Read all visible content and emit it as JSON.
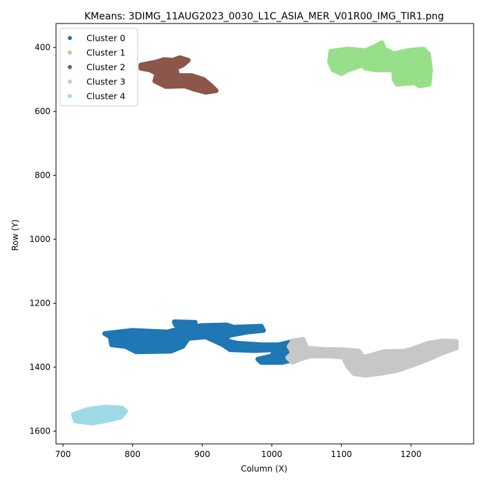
{
  "chart_data": {
    "type": "scatter",
    "title": "KMeans: 3DIMG_11AUG2023_0030_L1C_ASIA_MER_V01R00_IMG_TIR1.png",
    "xlabel": "Column (X)",
    "ylabel": "Row (Y)",
    "xlim": [
      690,
      1290
    ],
    "ylim": [
      1640,
      325
    ],
    "y_inverted": true,
    "x_ticks": [
      700,
      800,
      900,
      1000,
      1100,
      1200
    ],
    "y_ticks": [
      400,
      600,
      800,
      1000,
      1200,
      1400,
      1600
    ],
    "grid": false,
    "legend_position": "upper-left",
    "series": [
      {
        "name": "Cluster 0",
        "color": "#1f77b4",
        "regions": [
          [
            [
              760,
              1295
            ],
            [
              800,
              1285
            ],
            [
              850,
              1290
            ],
            [
              870,
              1278
            ],
            [
              900,
              1270
            ],
            [
              935,
              1268
            ],
            [
              945,
              1275
            ],
            [
              985,
              1272
            ],
            [
              988,
              1285
            ],
            [
              965,
              1290
            ],
            [
              940,
              1300
            ],
            [
              930,
              1315
            ],
            [
              950,
              1325
            ],
            [
              985,
              1330
            ],
            [
              1010,
              1330
            ],
            [
              1030,
              1320
            ],
            [
              1045,
              1325
            ],
            [
              1040,
              1345
            ],
            [
              1030,
              1345
            ],
            [
              1025,
              1380
            ],
            [
              1015,
              1385
            ],
            [
              985,
              1385
            ],
            [
              980,
              1375
            ],
            [
              1000,
              1365
            ],
            [
              1005,
              1345
            ],
            [
              975,
              1348
            ],
            [
              940,
              1345
            ],
            [
              930,
              1330
            ],
            [
              905,
              1305
            ],
            [
              880,
              1310
            ],
            [
              872,
              1335
            ],
            [
              855,
              1350
            ],
            [
              805,
              1352
            ],
            [
              790,
              1335
            ],
            [
              770,
              1330
            ],
            [
              768,
              1305
            ]
          ],
          [
            [
              860,
              1258
            ],
            [
              890,
              1260
            ],
            [
              880,
              1270
            ],
            [
              862,
              1268
            ]
          ]
        ]
      },
      {
        "name": "Cluster 1",
        "color": "#98df8a",
        "regions": [
          [
            [
              1085,
              412
            ],
            [
              1110,
              405
            ],
            [
              1135,
              410
            ],
            [
              1150,
              395
            ],
            [
              1158,
              385
            ],
            [
              1162,
              405
            ],
            [
              1175,
              420
            ],
            [
              1195,
              410
            ],
            [
              1218,
              405
            ],
            [
              1225,
              420
            ],
            [
              1228,
              470
            ],
            [
              1226,
              515
            ],
            [
              1212,
              520
            ],
            [
              1205,
              510
            ],
            [
              1180,
              515
            ],
            [
              1176,
              500
            ],
            [
              1175,
              470
            ],
            [
              1150,
              470
            ],
            [
              1135,
              465
            ],
            [
              1130,
              455
            ],
            [
              1110,
              470
            ],
            [
              1100,
              482
            ],
            [
              1088,
              470
            ],
            [
              1083,
              445
            ]
          ]
        ]
      },
      {
        "name": "Cluster 2",
        "color": "#8c564b",
        "regions": [
          [
            [
              812,
              455
            ],
            [
              835,
              445
            ],
            [
              845,
              438
            ],
            [
              858,
              440
            ],
            [
              868,
              432
            ],
            [
              880,
              440
            ],
            [
              872,
              455
            ],
            [
              862,
              465
            ],
            [
              865,
              488
            ],
            [
              885,
              488
            ],
            [
              902,
              500
            ],
            [
              913,
              520
            ],
            [
              920,
              535
            ],
            [
              905,
              540
            ],
            [
              888,
              530
            ],
            [
              875,
              520
            ],
            [
              848,
              522
            ],
            [
              832,
              505
            ],
            [
              835,
              482
            ],
            [
              825,
              470
            ],
            [
              812,
              465
            ]
          ]
        ]
      },
      {
        "name": "Cluster 3",
        "color": "#c7c7c7",
        "regions": [
          [
            [
              1025,
              1335
            ],
            [
              1030,
              1318
            ],
            [
              1045,
              1313
            ],
            [
              1050,
              1340
            ],
            [
              1075,
              1345
            ],
            [
              1100,
              1345
            ],
            [
              1125,
              1350
            ],
            [
              1130,
              1365
            ],
            [
              1110,
              1370
            ],
            [
              1085,
              1365
            ],
            [
              1055,
              1365
            ],
            [
              1040,
              1375
            ],
            [
              1030,
              1385
            ],
            [
              1023,
              1370
            ],
            [
              1030,
              1355
            ]
          ],
          [
            [
              1105,
              1380
            ],
            [
              1140,
              1365
            ],
            [
              1160,
              1352
            ],
            [
              1190,
              1350
            ],
            [
              1200,
              1345
            ],
            [
              1225,
              1325
            ],
            [
              1245,
              1318
            ],
            [
              1265,
              1320
            ],
            [
              1265,
              1340
            ],
            [
              1245,
              1355
            ],
            [
              1225,
              1375
            ],
            [
              1200,
              1395
            ],
            [
              1180,
              1410
            ],
            [
              1160,
              1418
            ],
            [
              1135,
              1425
            ],
            [
              1118,
              1420
            ],
            [
              1110,
              1400
            ]
          ]
        ]
      },
      {
        "name": "Cluster 4",
        "color": "#9edae5",
        "regions": [
          [
            [
              715,
              1548
            ],
            [
              735,
              1533
            ],
            [
              760,
              1525
            ],
            [
              785,
              1528
            ],
            [
              790,
              1538
            ],
            [
              783,
              1556
            ],
            [
              760,
              1568
            ],
            [
              742,
              1575
            ],
            [
              718,
              1568
            ]
          ]
        ]
      }
    ]
  }
}
